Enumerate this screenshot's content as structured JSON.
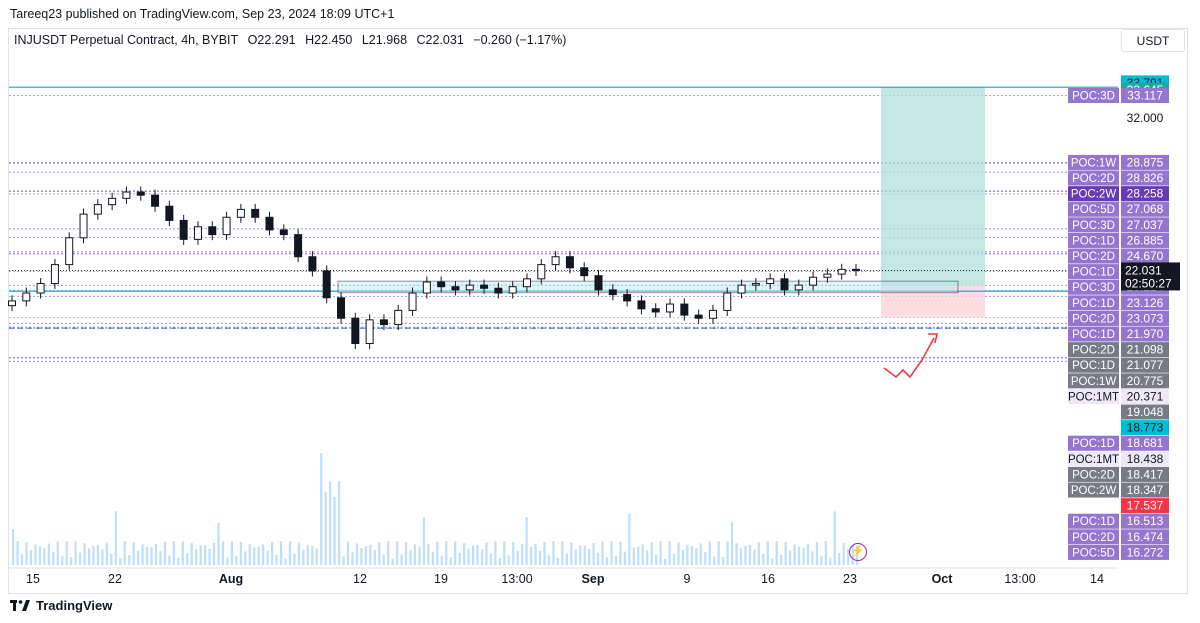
{
  "header": {
    "published": "Tareeq23 published on TradingView.com, Sep 23, 2024 18:09 UTC+1"
  },
  "legend": {
    "symbol": "INJUSDT Perpetual Contract, 4h, BYBIT",
    "open": "O22.291",
    "high": "H22.450",
    "low": "L21.968",
    "close": "C22.031",
    "change": "−0.260 (−1.17%)"
  },
  "currency": "USDT",
  "footer": {
    "brand": "TradingView"
  },
  "colors": {
    "poc_label": "#9575cd",
    "poc_label_dark": "#673ab7",
    "poc_gray": "#787b86",
    "teal": "#26a69a",
    "cyan": "#00bcd4",
    "red": "#f23645",
    "target_zone": "#b2dfdb",
    "stop_zone": "#fbd5d9"
  },
  "chart_data": {
    "type": "candlestick",
    "symbol": "INJUSDT",
    "timeframe": "4h",
    "ylim": [
      15.9,
      34.0
    ],
    "x_ticks": [
      "15",
      "22",
      "Aug",
      "12",
      "19",
      "13:00",
      "Sep",
      "9",
      "16",
      "23",
      "Oct",
      "13:00",
      "14"
    ],
    "price_axis_label": "32.000",
    "close_series": [
      20.1,
      20.6,
      21.2,
      22.4,
      24.1,
      25.6,
      26.2,
      26.6,
      27.0,
      26.8,
      26.1,
      25.2,
      24.0,
      24.8,
      24.3,
      25.4,
      25.9,
      25.4,
      24.6,
      24.3,
      22.9,
      22.0,
      20.3,
      19.0,
      17.4,
      18.9,
      18.6,
      19.5,
      20.6,
      21.3,
      21.0,
      20.8,
      21.1,
      20.9,
      20.6,
      21.0,
      21.5,
      22.4,
      22.9,
      22.2,
      21.7,
      20.8,
      20.5,
      20.1,
      19.6,
      19.4,
      19.9,
      19.2,
      19.0,
      19.5,
      20.6,
      21.1,
      21.2,
      21.5,
      20.8,
      21.1,
      21.6,
      21.8,
      22.1,
      22.031
    ],
    "levels": {
      "high_line": 33.645,
      "top_marker": 33.791,
      "current_price": 22.031,
      "countdown": "02:50:27",
      "support_top": 21.077,
      "support_bottom": 20.775,
      "target_marker": 18.773,
      "dashed_line": 18.438,
      "stop_marker": 17.537
    },
    "price_labels": [
      {
        "tag": "POC:3D",
        "value": "33.117",
        "style": "poc"
      },
      {
        "tag": "POC:1W",
        "value": "28.875",
        "style": "poc"
      },
      {
        "tag": "POC:2D",
        "value": "28.826",
        "style": "poc"
      },
      {
        "tag": "POC:2W",
        "value": "28.258",
        "style": "dark"
      },
      {
        "tag": "POC:5D",
        "value": "27.068",
        "style": "poc"
      },
      {
        "tag": "POC:3D",
        "value": "27.037",
        "style": "poc"
      },
      {
        "tag": "POC:1D",
        "value": "26.885",
        "style": "poc"
      },
      {
        "tag": "POC:2D",
        "value": "24.670",
        "style": "poc"
      },
      {
        "tag": "POC:1D",
        "value": "24.118",
        "style": "poc"
      },
      {
        "tag": "POC:3D",
        "value": "23.214",
        "style": "poc"
      },
      {
        "tag": "POC:1D",
        "value": "23.126",
        "style": "poc"
      },
      {
        "tag": "POC:2D",
        "value": "23.073",
        "style": "poc"
      },
      {
        "tag": "POC:1D",
        "value": "21.970",
        "style": "poc"
      },
      {
        "tag": "POC:2D",
        "value": "21.098",
        "style": "gray"
      },
      {
        "tag": "POC:1D",
        "value": "21.077",
        "style": "gray"
      },
      {
        "tag": "POC:1W",
        "value": "20.775",
        "style": "gray"
      },
      {
        "tag": "POC:1MT",
        "value": "20.371",
        "style": "light"
      },
      {
        "tag": "",
        "value": "19.048",
        "style": "gray"
      },
      {
        "tag": "",
        "value": "18.773",
        "style": "cyan"
      },
      {
        "tag": "POC:1D",
        "value": "18.681",
        "style": "poc"
      },
      {
        "tag": "POC:1MT",
        "value": "18.438",
        "style": "light"
      },
      {
        "tag": "POC:2D",
        "value": "18.417",
        "style": "gray"
      },
      {
        "tag": "POC:2W",
        "value": "18.347",
        "style": "gray"
      },
      {
        "tag": "",
        "value": "17.537",
        "style": "red"
      },
      {
        "tag": "POC:1D",
        "value": "16.513",
        "style": "poc"
      },
      {
        "tag": "POC:2D",
        "value": "16.474",
        "style": "poc"
      },
      {
        "tag": "POC:5D",
        "value": "16.272",
        "style": "poc"
      }
    ],
    "top_labels": [
      {
        "value": "33.791",
        "style": "cyan"
      },
      {
        "value": "33.645",
        "style": "teal"
      }
    ]
  }
}
